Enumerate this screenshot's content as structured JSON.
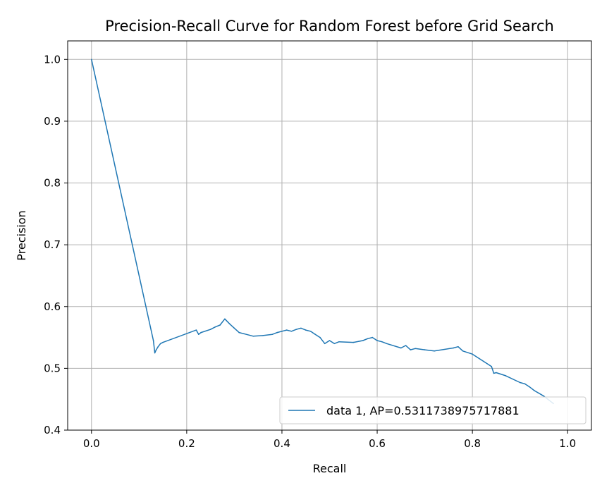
{
  "chart_data": {
    "type": "line",
    "title": "Precision-Recall Curve for Random Forest before Grid Search",
    "xlabel": "Recall",
    "ylabel": "Precision",
    "xlim": [
      -0.05,
      1.05
    ],
    "ylim": [
      0.4,
      1.03
    ],
    "xticks": [
      "0.0",
      "0.2",
      "0.4",
      "0.6",
      "0.8",
      "1.0"
    ],
    "yticks": [
      "0.4",
      "0.5",
      "0.6",
      "0.7",
      "0.8",
      "0.9",
      "1.0"
    ],
    "grid": true,
    "legend_position": "lower right",
    "series": [
      {
        "name": "data 1, AP=0.5311738975717881",
        "color": "#1f77b4",
        "x": [
          0.0,
          0.13,
          0.133,
          0.136,
          0.14,
          0.145,
          0.15,
          0.22,
          0.225,
          0.23,
          0.25,
          0.26,
          0.27,
          0.28,
          0.29,
          0.3,
          0.31,
          0.32,
          0.34,
          0.36,
          0.38,
          0.39,
          0.4,
          0.41,
          0.42,
          0.43,
          0.44,
          0.45,
          0.46,
          0.47,
          0.48,
          0.49,
          0.5,
          0.51,
          0.52,
          0.55,
          0.57,
          0.58,
          0.59,
          0.6,
          0.61,
          0.62,
          0.65,
          0.66,
          0.67,
          0.68,
          0.7,
          0.72,
          0.76,
          0.77,
          0.78,
          0.8,
          0.84,
          0.845,
          0.85,
          0.87,
          0.9,
          0.91,
          0.92,
          0.93,
          0.95,
          0.97
        ],
        "y": [
          1.0,
          0.545,
          0.525,
          0.53,
          0.535,
          0.54,
          0.542,
          0.562,
          0.555,
          0.558,
          0.563,
          0.567,
          0.57,
          0.58,
          0.572,
          0.565,
          0.558,
          0.556,
          0.552,
          0.553,
          0.555,
          0.558,
          0.56,
          0.562,
          0.56,
          0.563,
          0.565,
          0.562,
          0.56,
          0.555,
          0.55,
          0.54,
          0.545,
          0.54,
          0.543,
          0.542,
          0.545,
          0.548,
          0.55,
          0.545,
          0.543,
          0.54,
          0.533,
          0.537,
          0.53,
          0.532,
          0.53,
          0.528,
          0.533,
          0.535,
          0.528,
          0.523,
          0.503,
          0.492,
          0.493,
          0.488,
          0.477,
          0.475,
          0.47,
          0.464,
          0.455,
          0.443
        ]
      }
    ]
  }
}
